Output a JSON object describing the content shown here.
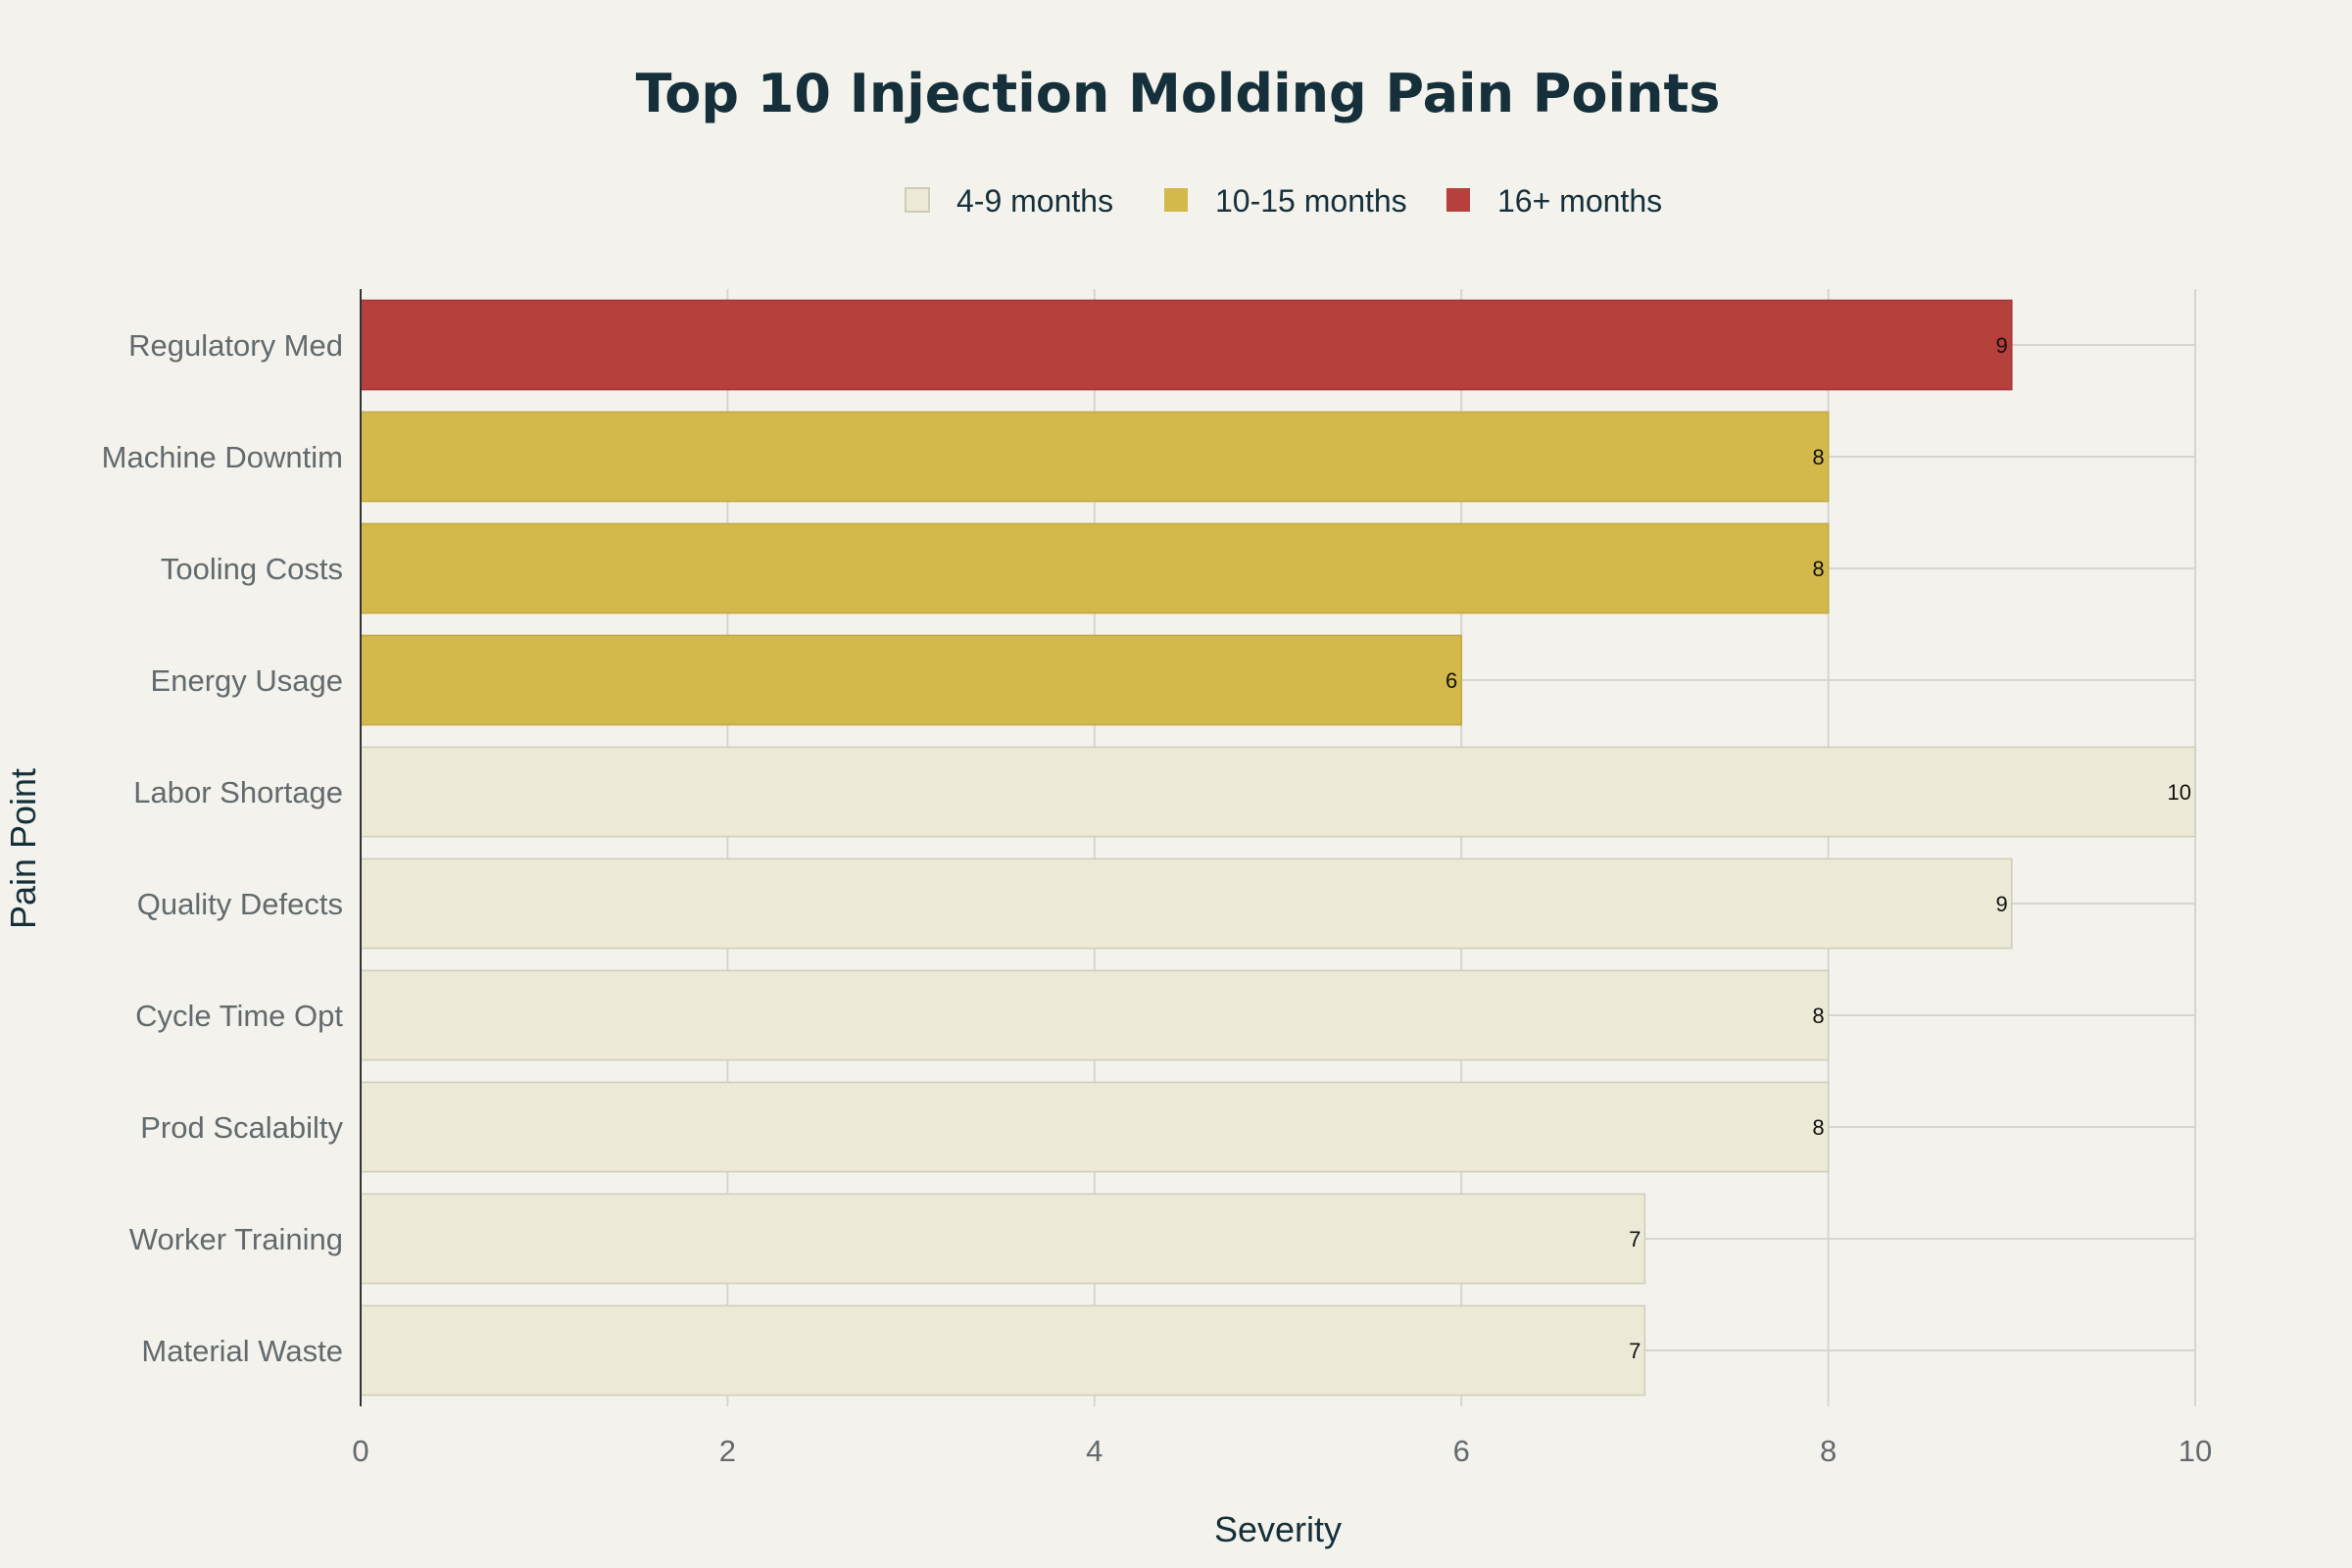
{
  "chart_data": {
    "type": "bar",
    "orientation": "horizontal",
    "title": "Top 10 Injection Molding Pain Points",
    "xlabel": "Severity",
    "ylabel": "Pain Point",
    "xlim": [
      0,
      10
    ],
    "xticks": [
      0,
      2,
      4,
      6,
      8,
      10
    ],
    "grid": true,
    "legend_position": "top-center",
    "legend": [
      {
        "name": "4-9 months",
        "color": "#ecead6"
      },
      {
        "name": "10-15 months",
        "color": "#d3b94c"
      },
      {
        "name": "16+ months",
        "color": "#b5403c"
      }
    ],
    "categories": [
      "Regulatory Med",
      "Machine Downtim",
      "Tooling Costs",
      "Energy Usage",
      "Labor Shortage",
      "Quality Defects",
      "Cycle Time Opt",
      "Prod Scalabilty",
      "Worker Training",
      "Material Waste"
    ],
    "values": [
      9,
      8,
      8,
      6,
      10,
      9,
      8,
      8,
      7,
      7
    ],
    "group": [
      "16+ months",
      "10-15 months",
      "10-15 months",
      "10-15 months",
      "4-9 months",
      "4-9 months",
      "4-9 months",
      "4-9 months",
      "4-9 months",
      "4-9 months"
    ]
  }
}
